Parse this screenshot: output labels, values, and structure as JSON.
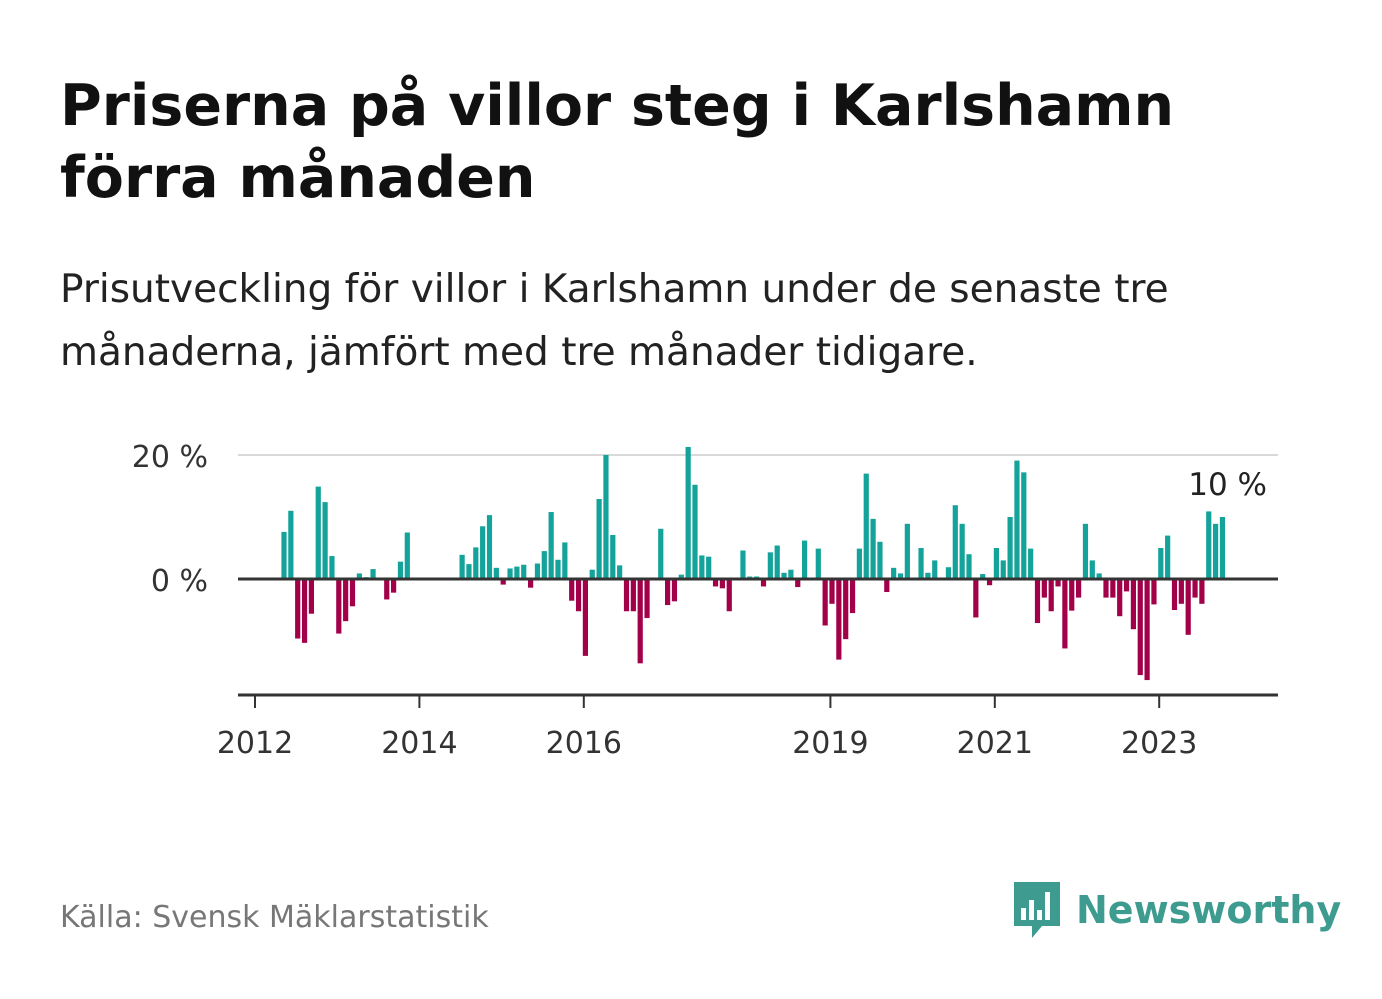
{
  "title": "Priserna på villor steg i Karlshamn förra månaden",
  "subtitle": "Prisutveckling för villor i Karlshamn under de senaste tre månaderna, jämfört med tre månader tidigare.",
  "source": "Källa: Svensk Mäklarstatistik",
  "brand": {
    "name": "Newsworthy",
    "icon": "newsworthy-logo-icon",
    "color": "#3d9c8f"
  },
  "colors": {
    "positive": "#14a39a",
    "negative": "#a3004a",
    "grid": "#d9d9d9",
    "axis": "#333333"
  },
  "chart_data": {
    "type": "bar",
    "ylim": [
      -18,
      20
    ],
    "yticks": [
      0,
      20
    ],
    "ytick_labels": [
      "0 %",
      "20 %"
    ],
    "xticks": [
      "2012",
      "2014",
      "2016",
      "2019",
      "2021",
      "2023"
    ],
    "xtick_index": [
      0,
      24,
      48,
      84,
      108,
      132
    ],
    "start": "2012-01",
    "grid": true,
    "last_label": "10 %",
    "values": [
      0,
      0,
      0,
      0,
      7.6,
      11,
      -9.6,
      -10.3,
      -5.6,
      14.9,
      12.4,
      3.7,
      -8.8,
      -6.8,
      -4.4,
      0.9,
      0.3,
      1.6,
      0,
      -3.3,
      -2.2,
      2.8,
      7.5,
      0,
      0,
      0,
      0,
      0,
      0,
      0,
      3.9,
      2.4,
      5.1,
      8.5,
      10.3,
      1.8,
      -0.9,
      1.7,
      2,
      2.3,
      -1.4,
      2.5,
      4.5,
      10.8,
      3.1,
      5.9,
      -3.5,
      -5.2,
      -12.4,
      1.5,
      12.9,
      20,
      7.1,
      2.2,
      -5.2,
      -5.2,
      -13.6,
      -6.3,
      0,
      8.1,
      -4.2,
      -3.6,
      0.7,
      21.3,
      15.2,
      3.8,
      3.6,
      -1.2,
      -1.5,
      -5.2,
      0,
      4.6,
      0.4,
      0.4,
      -1.2,
      4.3,
      5.4,
      1,
      1.5,
      -1.3,
      6.2,
      0,
      4.9,
      -7.5,
      -4,
      -13,
      -9.7,
      -5.5,
      4.9,
      17,
      9.7,
      6,
      -2.1,
      1.8,
      0.9,
      8.9,
      0,
      5,
      1,
      3,
      0,
      1.9,
      11.9,
      8.9,
      4,
      -6.2,
      0.8,
      -1,
      5,
      3,
      10,
      19.1,
      17.2,
      4.9,
      -7.1,
      -3,
      -5.2,
      -1.2,
      -11.2,
      -5.1,
      -3,
      8.9,
      3,
      0.9,
      -3,
      -3,
      -6,
      -2,
      -8.1,
      -15.5,
      -16.3,
      -4.1,
      5,
      7,
      -5,
      -4,
      -9,
      -3,
      -4,
      10.9,
      8.9,
      10
    ]
  }
}
